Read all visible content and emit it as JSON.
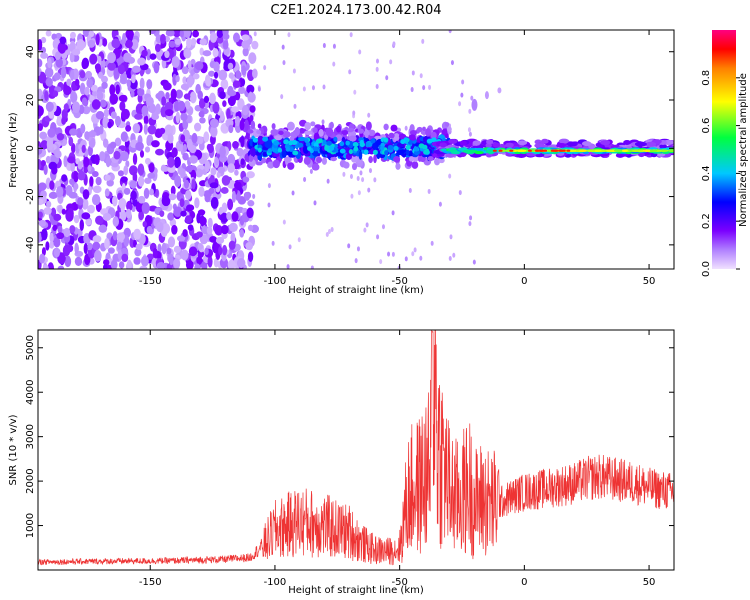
{
  "figure_title": "C2E1.2024.173.00.42.R04",
  "chart_data": [
    {
      "type": "heatmap",
      "title": "C2E1.2024.173.00.42.R04",
      "xlabel": "Height of straight line (km)",
      "ylabel": "Frequency (Hz)",
      "xlim": [
        -195,
        60
      ],
      "ylim": [
        -50,
        49
      ],
      "x_ticks": [
        -150,
        -100,
        -50,
        0,
        50
      ],
      "y_ticks": [
        -40,
        -20,
        0,
        20,
        40
      ],
      "grid": false,
      "colorbar": {
        "label": "Normalized spectral amplitude",
        "range": [
          0.0,
          1.0
        ],
        "ticks": [
          0.0,
          0.2,
          0.4,
          0.6,
          0.8
        ],
        "colormap": [
          "#f0e0ff",
          "#7b00ff",
          "#0000ff",
          "#00c8ff",
          "#00ff00",
          "#ffff00",
          "#ff0000",
          "#ff0080"
        ]
      },
      "regions": [
        {
          "x": [
            -195,
            -110
          ],
          "freq": [
            -50,
            49
          ],
          "amplitude": [
            0.05,
            0.25
          ]
        },
        {
          "x": [
            -110,
            -30
          ],
          "freq": [
            -8,
            8
          ],
          "amplitude": [
            0.2,
            0.45
          ]
        },
        {
          "x": [
            -30,
            60
          ],
          "freq": [
            -3,
            3
          ],
          "amplitude": [
            0.4,
            0.95
          ]
        }
      ]
    },
    {
      "type": "line",
      "xlabel": "Height of straight line (km)",
      "ylabel": "SNR (10 * v/v)",
      "xlim": [
        -195,
        60
      ],
      "ylim": [
        0,
        5400
      ],
      "x_ticks": [
        -150,
        -100,
        -50,
        0,
        50
      ],
      "y_ticks": [
        1000,
        2000,
        3000,
        4000,
        5000
      ],
      "grid": false,
      "series": [
        {
          "color": "#ee3333",
          "x": [
            -195,
            -180,
            -160,
            -140,
            -120,
            -110,
            -104,
            -100,
            -95,
            -90,
            -85,
            -80,
            -75,
            -70,
            -65,
            -60,
            -55,
            -50,
            -47,
            -45,
            -42,
            -40,
            -38,
            -37,
            -36,
            -35,
            -33,
            -30,
            -27,
            -25,
            -22,
            -20,
            -17,
            -14,
            -10,
            -5,
            0,
            5,
            10,
            15,
            20,
            25,
            30,
            35,
            40,
            45,
            50,
            55,
            60
          ],
          "values": [
            180,
            190,
            200,
            210,
            240,
            280,
            600,
            900,
            1000,
            1100,
            1050,
            1000,
            900,
            850,
            600,
            450,
            420,
            480,
            1600,
            1800,
            1900,
            2100,
            2200,
            3300,
            5300,
            3000,
            2500,
            1800,
            1600,
            1700,
            1900,
            1500,
            1600,
            1500,
            1500,
            1650,
            1750,
            1800,
            1850,
            1900,
            1950,
            2050,
            2100,
            2050,
            2000,
            1950,
            1850,
            1800,
            1750
          ]
        }
      ]
    }
  ]
}
